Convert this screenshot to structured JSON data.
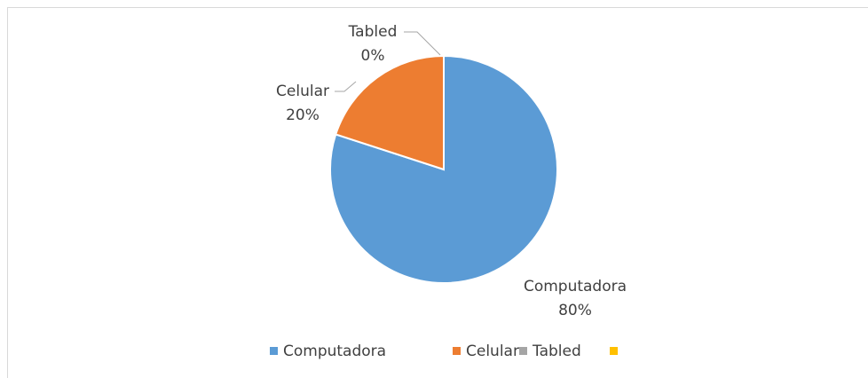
{
  "chart_data": {
    "type": "pie",
    "categories": [
      "Computadora",
      "Celular",
      "Tabled",
      null
    ],
    "values": [
      80,
      20,
      0,
      null
    ],
    "value_labels": [
      "80%",
      "20%",
      "0%",
      null
    ],
    "colors": [
      "#5b9bd5",
      "#ed7d31",
      "#a5a5a5",
      "#ffc000"
    ],
    "legend": "bottom"
  }
}
